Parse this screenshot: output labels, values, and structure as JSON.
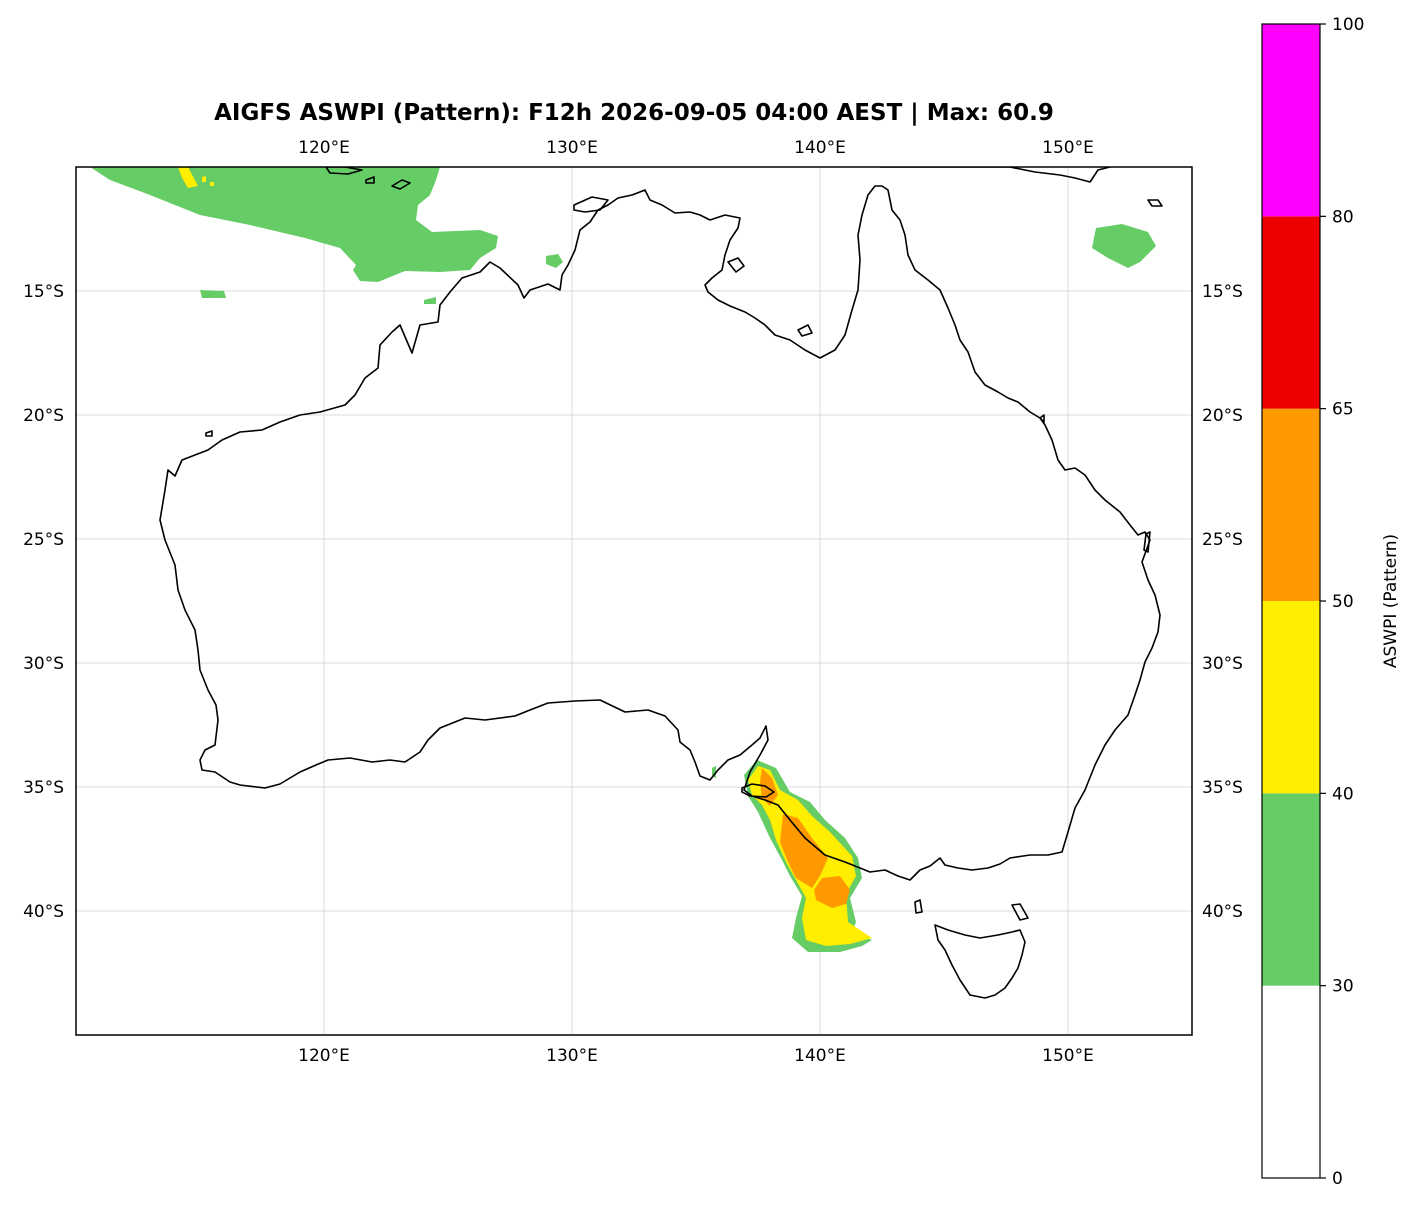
{
  "title": "AIGFS ASWPI (Pattern): F12h 2026-09-05 04:00 AEST | Max: 60.9",
  "map": {
    "lon_range": [
      110,
      155
    ],
    "lat_range": [
      -45,
      -10
    ],
    "lon_ticks": [
      {
        "value": 120,
        "label": "120°E"
      },
      {
        "value": 130,
        "label": "130°E"
      },
      {
        "value": 140,
        "label": "140°E"
      },
      {
        "value": 150,
        "label": "150°E"
      }
    ],
    "lat_ticks": [
      {
        "value": -15,
        "label": "15°S"
      },
      {
        "value": -20,
        "label": "20°S"
      },
      {
        "value": -25,
        "label": "25°S"
      },
      {
        "value": -30,
        "label": "30°S"
      },
      {
        "value": -35,
        "label": "35°S"
      },
      {
        "value": -40,
        "label": "40°S"
      }
    ],
    "gridlines": true,
    "max_value": 60.9
  },
  "colorbar": {
    "label": "ASWPI (Pattern)",
    "bins": [
      {
        "from": 0,
        "to": 30,
        "color": "#ffffff"
      },
      {
        "from": 30,
        "to": 40,
        "color": "#66cc66"
      },
      {
        "from": 40,
        "to": 50,
        "color": "#ffee00"
      },
      {
        "from": 50,
        "to": 65,
        "color": "#ff9900"
      },
      {
        "from": 65,
        "to": 80,
        "color": "#ee0000"
      },
      {
        "from": 80,
        "to": 100,
        "color": "#ff00ff"
      }
    ],
    "ticks": [
      {
        "value": 0,
        "label": "0"
      },
      {
        "value": 30,
        "label": "30"
      },
      {
        "value": 40,
        "label": "40"
      },
      {
        "value": 50,
        "label": "50"
      },
      {
        "value": 65,
        "label": "65"
      },
      {
        "value": 80,
        "label": "80"
      },
      {
        "value": 100,
        "label": "100"
      }
    ]
  }
}
